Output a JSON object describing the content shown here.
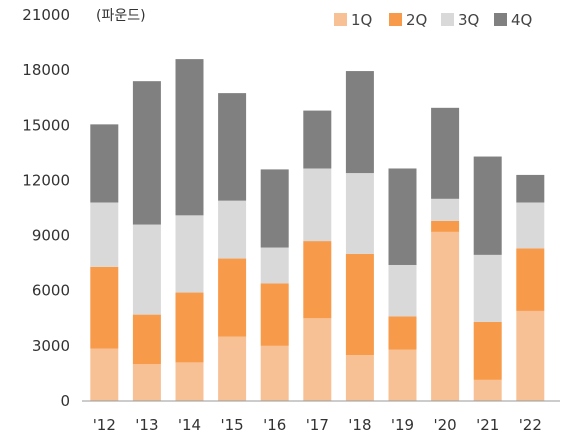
{
  "chart_data": {
    "type": "bar",
    "stacked": true,
    "title": "",
    "unit_label": "(파운드)",
    "xlabel": "",
    "ylabel": "",
    "categories": [
      "'12",
      "'13",
      "'14",
      "'15",
      "'16",
      "'17",
      "'18",
      "'19",
      "'20",
      "'21",
      "'22"
    ],
    "series": [
      {
        "name": "1Q",
        "color": "#f8c195",
        "values": [
          2850,
          2000,
          2100,
          3500,
          3000,
          4500,
          2500,
          2800,
          9200,
          1150,
          4900
        ]
      },
      {
        "name": "2Q",
        "color": "#f79a4a",
        "values": [
          4450,
          2700,
          3800,
          4250,
          3400,
          4200,
          5500,
          1800,
          600,
          3150,
          3400
        ]
      },
      {
        "name": "3Q",
        "color": "#d9d9d9",
        "values": [
          3500,
          4900,
          4200,
          3150,
          1950,
          3950,
          4400,
          2800,
          1200,
          3650,
          2500
        ]
      },
      {
        "name": "4Q",
        "color": "#808080",
        "values": [
          4250,
          7800,
          8500,
          5850,
          4250,
          3150,
          5550,
          5250,
          4950,
          5350,
          1500
        ]
      }
    ],
    "ylim": [
      0,
      21000
    ],
    "yticks": [
      0,
      3000,
      6000,
      9000,
      12000,
      15000,
      18000,
      21000
    ],
    "grid": false,
    "legend_position": "top-right"
  }
}
